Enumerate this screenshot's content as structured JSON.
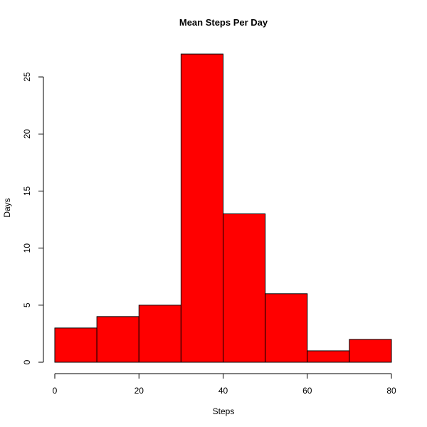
{
  "chart_data": {
    "type": "bar",
    "title": "Mean Steps Per Day",
    "xlabel": "Steps",
    "ylabel": "Days",
    "bins": [
      [
        0,
        10
      ],
      [
        10,
        20
      ],
      [
        20,
        30
      ],
      [
        30,
        40
      ],
      [
        40,
        50
      ],
      [
        50,
        60
      ],
      [
        60,
        70
      ],
      [
        70,
        80
      ]
    ],
    "values": [
      3,
      4,
      5,
      27,
      13,
      6,
      1,
      2
    ],
    "xlim": [
      0,
      80
    ],
    "ylim": [
      0,
      27
    ],
    "x_ticks": [
      0,
      20,
      40,
      60,
      80
    ],
    "y_ticks": [
      0,
      5,
      10,
      15,
      20,
      25
    ],
    "bar_color": "#ff0000",
    "grid": false,
    "legend": "none"
  }
}
